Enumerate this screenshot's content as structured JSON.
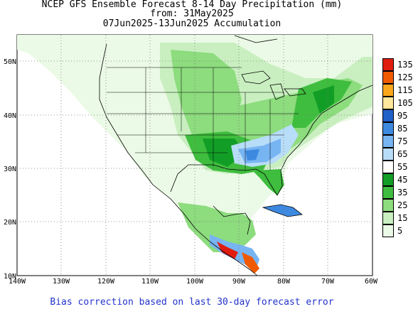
{
  "title": {
    "line1": "NCEP GFS Ensemble Forecast 8-14 Day Precipitation (mm)",
    "line2": "from: 31May2025",
    "line3": "07Jun2025-13Jun2025 Accumulation"
  },
  "map": {
    "lat_labels": [
      "50N",
      "40N",
      "30N",
      "20N",
      "10N"
    ],
    "lon_labels": [
      "140W",
      "130W",
      "120W",
      "110W",
      "100W",
      "90W",
      "80W",
      "70W",
      "60W"
    ],
    "ocean_color": "#ffffff",
    "land_outline_color": "#000000",
    "grid_color": "#777777"
  },
  "colorbar": {
    "levels": [
      {
        "label": "135",
        "color": "#e01c0f"
      },
      {
        "label": "125",
        "color": "#f05a00"
      },
      {
        "label": "115",
        "color": "#f9a81d"
      },
      {
        "label": "105",
        "color": "#fde89b"
      },
      {
        "label": "95",
        "color": "#1f5fc8"
      },
      {
        "label": "85",
        "color": "#3d89e0"
      },
      {
        "label": "75",
        "color": "#77b4f2"
      },
      {
        "label": "65",
        "color": "#b8ddf8"
      },
      {
        "label": "55",
        "color": "#ffffff"
      },
      {
        "label": "45",
        "color": "#129e26"
      },
      {
        "label": "35",
        "color": "#3fbd3e"
      },
      {
        "label": "25",
        "color": "#8ddc7e"
      },
      {
        "label": "15",
        "color": "#c9efc0"
      },
      {
        "label": "5",
        "color": "#ebfae6"
      }
    ]
  },
  "footer": "Bias correction based on last 30-day forecast error"
}
